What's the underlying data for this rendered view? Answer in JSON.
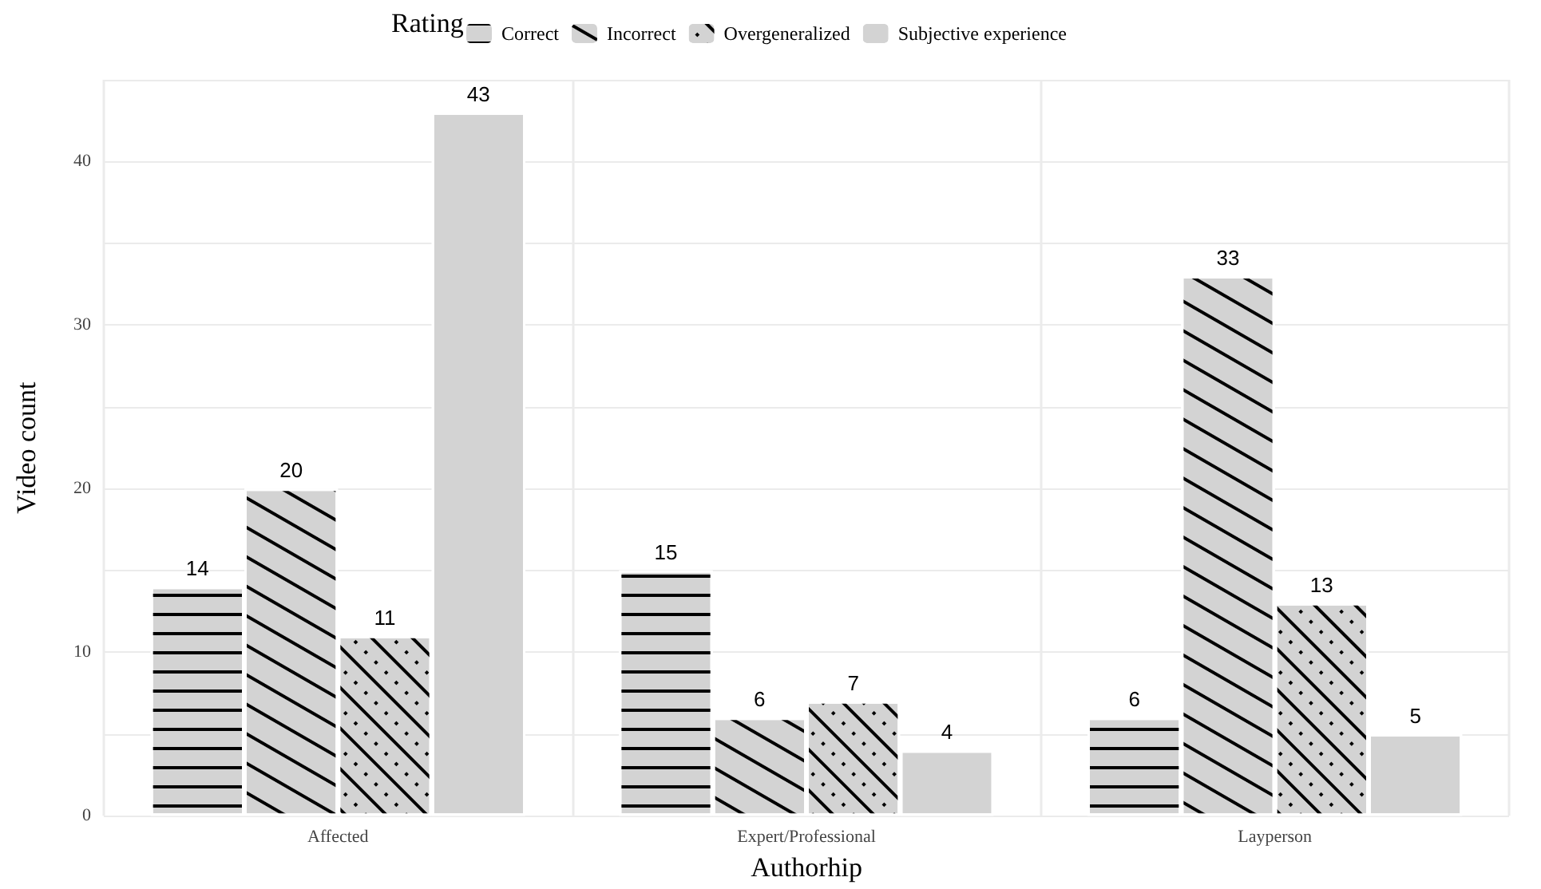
{
  "chart_data": {
    "type": "bar",
    "xlabel": "Authorhip",
    "ylabel": "Video count",
    "legend_title": "Rating",
    "legend": "top",
    "categories": [
      "Affected",
      "Expert/Professional",
      "Layperson"
    ],
    "series": [
      {
        "name": "Correct",
        "color": "#d3d3d3",
        "values": [
          14,
          15,
          6
        ]
      },
      {
        "name": "Incorrect",
        "color": "#d3d3d3",
        "values": [
          20,
          6,
          33
        ]
      },
      {
        "name": "Overgeneralized",
        "color": "#d3d3d3",
        "values": [
          11,
          7,
          13
        ]
      },
      {
        "name": "Subjective experience",
        "color": "#d3d3d3",
        "values": [
          43,
          4,
          5
        ]
      }
    ],
    "ylim": [
      0,
      45
    ],
    "yticks": [
      0,
      {
        "value": 5,
        "label": null
      },
      10,
      {
        "value": 15,
        "label": null
      },
      20,
      {
        "value": 25,
        "label": null
      },
      30,
      {
        "value": 35,
        "label": null
      },
      40,
      {
        "value": 45,
        "label": null
      }
    ],
    "grid": true,
    "data_labels": true
  }
}
